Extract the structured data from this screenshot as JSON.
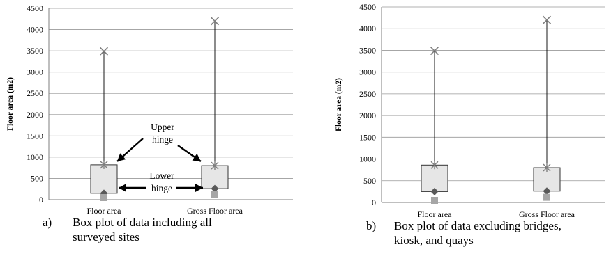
{
  "chart_data": [
    {
      "type": "box",
      "panel_label": "a)",
      "caption_lines": [
        "Box plot of data including all",
        "surveyed sites"
      ],
      "ylabel": "Floor area (m2)",
      "xlabel": "",
      "ylim": [
        0,
        4500
      ],
      "yticks": [
        0,
        500,
        1000,
        1500,
        2000,
        2500,
        3000,
        3500,
        4000,
        4500
      ],
      "grid": true,
      "categories": [
        "Floor area",
        "Gross Floor area"
      ],
      "boxes": [
        {
          "category": "Floor area",
          "min": 0,
          "lower_hinge": 150,
          "median": 150,
          "upper_hinge": 820,
          "max": 3490
        },
        {
          "category": "Gross Floor area",
          "min": 70,
          "lower_hinge": 260,
          "median": 260,
          "upper_hinge": 800,
          "max": 4200
        }
      ],
      "annotations": {
        "upper_line1": "Upper",
        "upper_line2": "hinge",
        "lower_line1": "Lower",
        "lower_line2": "hinge"
      }
    },
    {
      "type": "box",
      "panel_label": "b)",
      "caption_lines": [
        "Box plot of  data excluding bridges,",
        "kiosk, and quays"
      ],
      "ylabel": "Floor area (m2)",
      "xlabel": "",
      "ylim": [
        0,
        4500
      ],
      "yticks": [
        0,
        500,
        1000,
        1500,
        2000,
        2500,
        3000,
        3500,
        4000,
        4500
      ],
      "grid": true,
      "categories": [
        "Floor area",
        "Gross Floor area"
      ],
      "boxes": [
        {
          "category": "Floor area",
          "min": 0,
          "lower_hinge": 250,
          "median": 250,
          "upper_hinge": 860,
          "max": 3490
        },
        {
          "category": "Gross Floor area",
          "min": 70,
          "lower_hinge": 260,
          "median": 260,
          "upper_hinge": 800,
          "max": 4200
        }
      ]
    }
  ],
  "colors": {
    "box_fill": "#e6e6e6",
    "box_stroke": "#333333",
    "grid": "#999999",
    "median_marker": "#595959",
    "min_marker": "#a6a6a6",
    "max_marker": "#7f7f7f"
  }
}
